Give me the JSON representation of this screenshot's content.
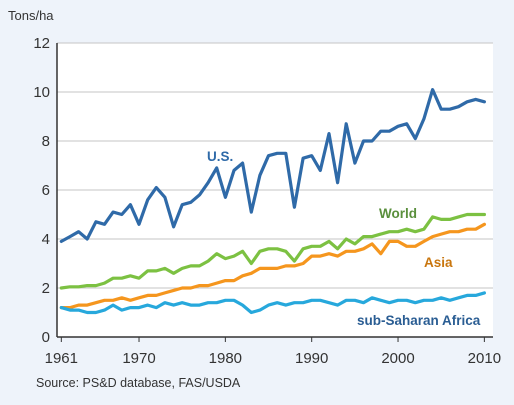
{
  "chart_data": {
    "type": "line",
    "unit_label": "Tons/ha",
    "source": "Source: PS&D database, FAS/USDA",
    "x": [
      1961,
      1962,
      1963,
      1964,
      1965,
      1966,
      1967,
      1968,
      1969,
      1970,
      1971,
      1972,
      1973,
      1974,
      1975,
      1976,
      1977,
      1978,
      1979,
      1980,
      1981,
      1982,
      1983,
      1984,
      1985,
      1986,
      1987,
      1988,
      1989,
      1990,
      1991,
      1992,
      1993,
      1994,
      1995,
      1996,
      1997,
      1998,
      1999,
      2000,
      2001,
      2002,
      2003,
      2004,
      2005,
      2006,
      2007,
      2008,
      2009,
      2010
    ],
    "xlim": [
      1960.5,
      2011
    ],
    "ylim": [
      0,
      12
    ],
    "x_ticks": [
      1961,
      1970,
      1980,
      1990,
      2000,
      2010
    ],
    "y_ticks": [
      0,
      2,
      4,
      6,
      8,
      10,
      12
    ],
    "grid": true,
    "series": [
      {
        "name": "U.S.",
        "color": "#2f6aa8",
        "values": [
          3.9,
          4.1,
          4.3,
          4.0,
          4.7,
          4.6,
          5.1,
          5.0,
          5.4,
          4.6,
          5.6,
          6.1,
          5.7,
          4.5,
          5.4,
          5.5,
          5.8,
          6.3,
          6.9,
          5.7,
          6.8,
          7.1,
          5.1,
          6.6,
          7.4,
          7.5,
          7.5,
          5.3,
          7.3,
          7.4,
          6.8,
          8.3,
          6.3,
          8.7,
          7.1,
          8.0,
          8.0,
          8.4,
          8.4,
          8.6,
          8.7,
          8.1,
          8.9,
          10.1,
          9.3,
          9.3,
          9.4,
          9.6,
          9.7,
          9.6
        ]
      },
      {
        "name": "World",
        "color": "#7cc142",
        "values": [
          2.0,
          2.05,
          2.05,
          2.1,
          2.1,
          2.2,
          2.4,
          2.4,
          2.5,
          2.4,
          2.7,
          2.7,
          2.8,
          2.6,
          2.8,
          2.9,
          2.9,
          3.1,
          3.4,
          3.2,
          3.3,
          3.5,
          3.0,
          3.5,
          3.6,
          3.6,
          3.5,
          3.1,
          3.6,
          3.7,
          3.7,
          3.9,
          3.6,
          4.0,
          3.8,
          4.1,
          4.1,
          4.2,
          4.3,
          4.3,
          4.4,
          4.3,
          4.4,
          4.9,
          4.8,
          4.8,
          4.9,
          5.0,
          5.0,
          5.0
        ]
      },
      {
        "name": "Asia",
        "color": "#f5961e",
        "values": [
          1.2,
          1.2,
          1.3,
          1.3,
          1.4,
          1.5,
          1.5,
          1.6,
          1.5,
          1.6,
          1.7,
          1.7,
          1.8,
          1.9,
          2.0,
          2.0,
          2.1,
          2.1,
          2.2,
          2.3,
          2.3,
          2.5,
          2.6,
          2.8,
          2.8,
          2.8,
          2.9,
          2.9,
          3.0,
          3.3,
          3.3,
          3.4,
          3.3,
          3.5,
          3.5,
          3.6,
          3.8,
          3.4,
          3.9,
          3.9,
          3.7,
          3.7,
          3.9,
          4.1,
          4.2,
          4.3,
          4.3,
          4.4,
          4.4,
          4.6
        ]
      },
      {
        "name": "sub-Saharan Africa",
        "color": "#27a8dc",
        "values": [
          1.2,
          1.1,
          1.1,
          1.0,
          1.0,
          1.1,
          1.3,
          1.1,
          1.2,
          1.2,
          1.3,
          1.2,
          1.4,
          1.3,
          1.4,
          1.3,
          1.3,
          1.4,
          1.4,
          1.5,
          1.5,
          1.3,
          1.0,
          1.1,
          1.3,
          1.4,
          1.3,
          1.4,
          1.4,
          1.5,
          1.5,
          1.4,
          1.3,
          1.5,
          1.5,
          1.4,
          1.6,
          1.5,
          1.4,
          1.5,
          1.5,
          1.4,
          1.5,
          1.5,
          1.6,
          1.5,
          1.6,
          1.7,
          1.7,
          1.8
        ]
      }
    ]
  }
}
